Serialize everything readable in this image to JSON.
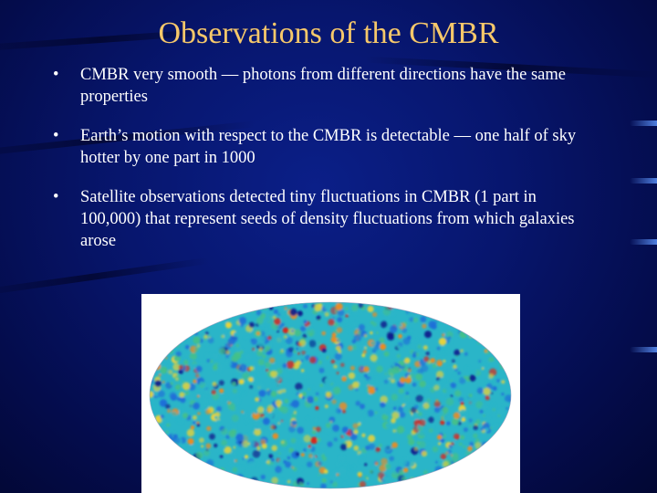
{
  "slide": {
    "title": "Observations of the CMBR",
    "bullet_symbol": "•",
    "bullets": [
      {
        "text": "CMBR very smooth — photons from different directions have the same properties"
      },
      {
        "text": "Earth’s motion with respect to the CMBR is detectable — one half of sky hotter by one part in 1000"
      },
      {
        "text": "Satellite observations detected tiny fluctuations in CMBR (1 part in 100,000) that represent seeds of density fluctuations from which galaxies arose"
      }
    ],
    "figure": {
      "name": "cmbr-all-sky-map",
      "colors": [
        "#0a1a8c",
        "#1f6fd8",
        "#2ab5c8",
        "#44c08a",
        "#e6d23a",
        "#f08a1e",
        "#d8281e"
      ]
    },
    "colors": {
      "background": "#07166e",
      "title": "#f6c86a",
      "text": "#ffffff"
    }
  }
}
